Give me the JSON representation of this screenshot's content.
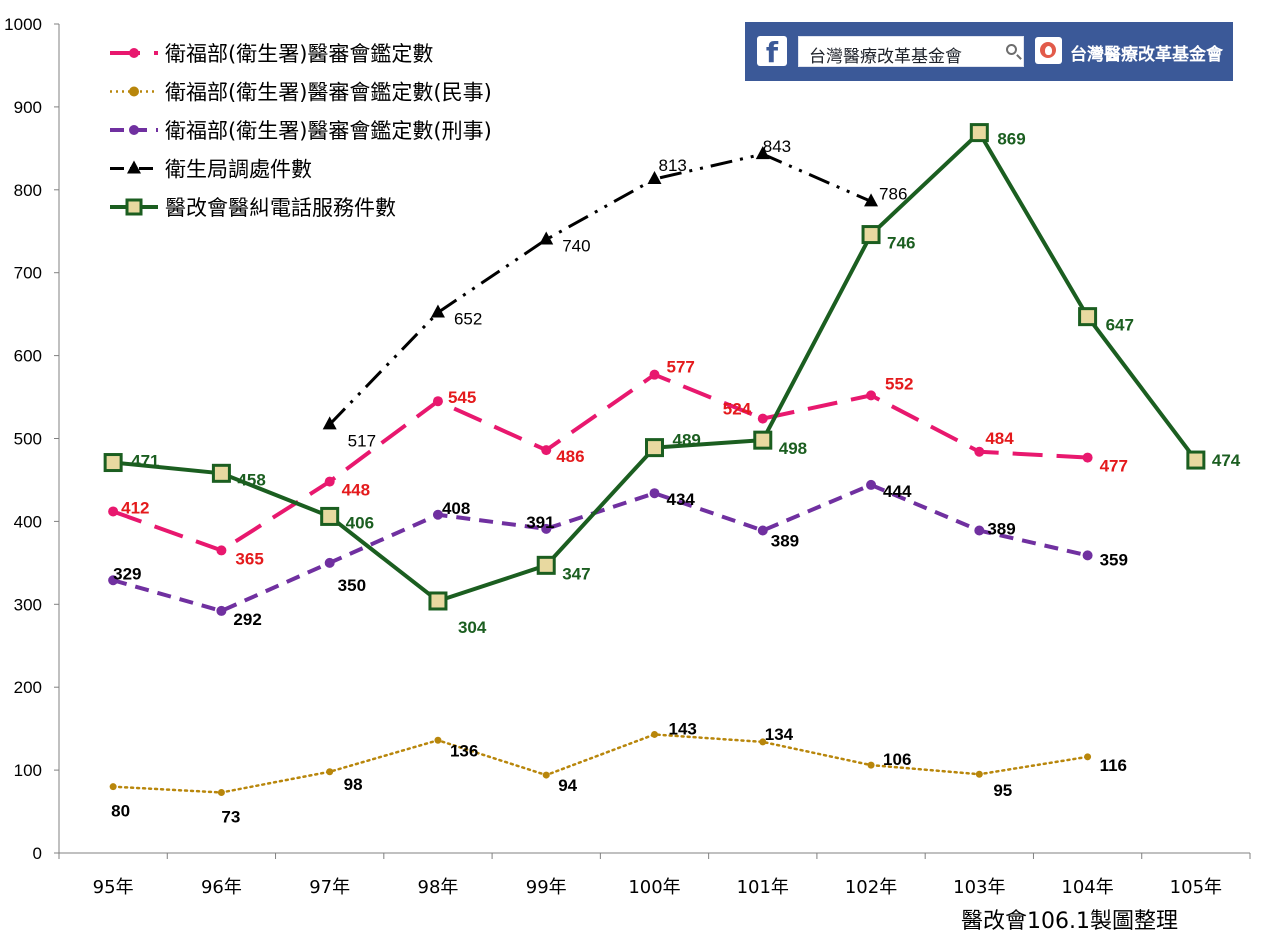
{
  "chart_data": {
    "type": "line",
    "categories": [
      "95年",
      "96年",
      "97年",
      "98年",
      "99年",
      "100年",
      "101年",
      "102年",
      "103年",
      "104年",
      "105年"
    ],
    "ylim": [
      0,
      1000
    ],
    "yticks": [
      0,
      100,
      200,
      300,
      400,
      500,
      600,
      700,
      800,
      900,
      1000
    ],
    "grid": false,
    "legend": "top-left",
    "series": [
      {
        "name": "衛福部(衛生署)醫審會鑑定數",
        "color": "#e8186e",
        "style": "dashed",
        "marker": "circle",
        "values": [
          412,
          365,
          448,
          545,
          486,
          577,
          524,
          552,
          484,
          477,
          null
        ],
        "labels": [
          "412",
          "365",
          "448",
          "545",
          "486",
          "577",
          "524",
          "552",
          "484",
          "477",
          ""
        ],
        "label_color": "#e41a1c"
      },
      {
        "name": "衛福部(衛生署)醫審會鑑定數(民事)",
        "color": "#b8860b",
        "style": "dotted",
        "marker": "circle",
        "values": [
          80,
          73,
          98,
          136,
          94,
          143,
          134,
          106,
          95,
          116,
          null
        ],
        "labels": [
          "80",
          "73",
          "98",
          "136",
          "94",
          "143",
          "134",
          "106",
          "95",
          "116",
          ""
        ],
        "label_color": "#000000"
      },
      {
        "name": "衛福部(衛生署)醫審會鑑定數(刑事)",
        "color": "#7030a0",
        "style": "dashed",
        "marker": "circle",
        "values": [
          329,
          292,
          350,
          408,
          391,
          434,
          389,
          444,
          389,
          359,
          null
        ],
        "labels": [
          "329",
          "292",
          "350",
          "408",
          "391",
          "434",
          "389",
          "444",
          "389",
          "359",
          ""
        ],
        "label_color": "#000000"
      },
      {
        "name": "衛生局調處件數",
        "color": "#000000",
        "style": "dash-dot-dot",
        "marker": "triangle",
        "values": [
          null,
          null,
          517,
          652,
          740,
          813,
          843,
          786,
          null,
          null,
          null
        ],
        "labels": [
          "",
          "",
          "517",
          "652",
          "740",
          "813",
          "843",
          "786",
          "",
          "",
          ""
        ],
        "label_color": "#000000"
      },
      {
        "name": "醫改會醫糾電話服務件數",
        "color": "#1b5e20",
        "style": "solid",
        "marker": "square",
        "values": [
          471,
          458,
          406,
          304,
          347,
          489,
          498,
          746,
          869,
          647,
          474
        ],
        "labels": [
          "471",
          "458",
          "406",
          "304",
          "347",
          "489",
          "498",
          "746",
          "869",
          "647",
          "474"
        ],
        "label_color": "#1b5e20"
      }
    ]
  },
  "brand": {
    "search_text": "台灣醫療改革基金會",
    "name": "台灣醫療改革基金會",
    "fb_icon": "facebook-icon",
    "search_icon": "search-icon",
    "logo_icon": "foundation-logo-icon"
  },
  "footer_note": "醫改會106.1製圖整理"
}
